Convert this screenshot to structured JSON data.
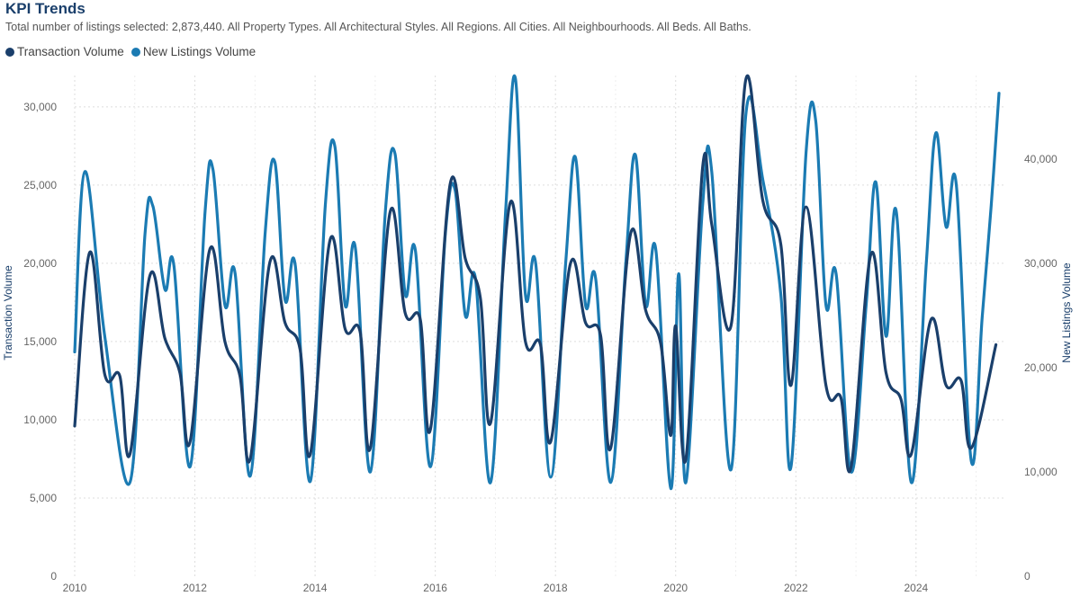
{
  "chart_data": {
    "type": "line",
    "title": "KPI Trends",
    "subtitle": "Total number of listings selected: 2,873,440. All Property Types. All Architectural Styles. All Regions. All Cities. All Neighbourhoods. All Beds. All Baths.",
    "xlabel": "",
    "ylabel": "Transaction Volume",
    "y2label": "New Listings Volume",
    "ylim": [
      0,
      32000
    ],
    "y2lim": [
      0,
      48000
    ],
    "xlim": [
      2010,
      2025.5
    ],
    "x_ticks": [
      "2010",
      "2012",
      "2014",
      "2016",
      "2018",
      "2020",
      "2022",
      "2024"
    ],
    "y_ticks": [
      "0",
      "5,000",
      "10,000",
      "15,000",
      "20,000",
      "25,000",
      "30,000"
    ],
    "y2_ticks": [
      "0",
      "10,000",
      "20,000",
      "30,000",
      "40,000"
    ],
    "grid": true,
    "legend_position": "top-left",
    "series": [
      {
        "name": "Transaction Volume",
        "axis": "left",
        "color": "#1a3f6b",
        "points": [
          [
            2010.0,
            9600
          ],
          [
            2010.25,
            20700
          ],
          [
            2010.5,
            12900
          ],
          [
            2010.75,
            12800
          ],
          [
            2010.92,
            7800
          ],
          [
            2011.25,
            19200
          ],
          [
            2011.5,
            15200
          ],
          [
            2011.75,
            13000
          ],
          [
            2011.92,
            8600
          ],
          [
            2012.25,
            20900
          ],
          [
            2012.5,
            15000
          ],
          [
            2012.75,
            12800
          ],
          [
            2012.92,
            7500
          ],
          [
            2013.25,
            20100
          ],
          [
            2013.5,
            16200
          ],
          [
            2013.75,
            14500
          ],
          [
            2013.92,
            7800
          ],
          [
            2014.25,
            21500
          ],
          [
            2014.5,
            15800
          ],
          [
            2014.75,
            15600
          ],
          [
            2014.92,
            8200
          ],
          [
            2015.25,
            23300
          ],
          [
            2015.5,
            16800
          ],
          [
            2015.75,
            16400
          ],
          [
            2015.92,
            9400
          ],
          [
            2016.25,
            25100
          ],
          [
            2016.5,
            20300
          ],
          [
            2016.75,
            17800
          ],
          [
            2016.92,
            9800
          ],
          [
            2017.25,
            23900
          ],
          [
            2017.5,
            15000
          ],
          [
            2017.75,
            14800
          ],
          [
            2017.92,
            8600
          ],
          [
            2018.25,
            20000
          ],
          [
            2018.5,
            16200
          ],
          [
            2018.75,
            15400
          ],
          [
            2018.92,
            8200
          ],
          [
            2019.25,
            21900
          ],
          [
            2019.5,
            17000
          ],
          [
            2019.75,
            14900
          ],
          [
            2019.92,
            9000
          ],
          [
            2020.0,
            16000
          ],
          [
            2020.17,
            7500
          ],
          [
            2020.45,
            26200
          ],
          [
            2020.6,
            22500
          ],
          [
            2020.92,
            16000
          ],
          [
            2021.17,
            31800
          ],
          [
            2021.45,
            24000
          ],
          [
            2021.75,
            21200
          ],
          [
            2021.92,
            12200
          ],
          [
            2022.17,
            23600
          ],
          [
            2022.5,
            12200
          ],
          [
            2022.75,
            11400
          ],
          [
            2022.92,
            7000
          ],
          [
            2023.25,
            20600
          ],
          [
            2023.5,
            13000
          ],
          [
            2023.75,
            11300
          ],
          [
            2023.92,
            7800
          ],
          [
            2024.25,
            16400
          ],
          [
            2024.5,
            12200
          ],
          [
            2024.75,
            12500
          ],
          [
            2024.92,
            8200
          ],
          [
            2025.33,
            14800
          ]
        ]
      },
      {
        "name": "New Listings Volume",
        "axis": "right",
        "color": "#1b7bb3",
        "points": [
          [
            2010.0,
            21500
          ],
          [
            2010.17,
            38800
          ],
          [
            2010.5,
            23000
          ],
          [
            2010.92,
            9000
          ],
          [
            2011.17,
            32800
          ],
          [
            2011.3,
            35500
          ],
          [
            2011.5,
            27500
          ],
          [
            2011.65,
            29800
          ],
          [
            2011.92,
            10500
          ],
          [
            2012.17,
            35000
          ],
          [
            2012.3,
            39000
          ],
          [
            2012.5,
            26000
          ],
          [
            2012.67,
            29000
          ],
          [
            2012.92,
            9600
          ],
          [
            2013.17,
            33000
          ],
          [
            2013.33,
            39700
          ],
          [
            2013.5,
            26500
          ],
          [
            2013.67,
            29800
          ],
          [
            2013.92,
            9100
          ],
          [
            2014.17,
            35500
          ],
          [
            2014.33,
            41200
          ],
          [
            2014.5,
            26000
          ],
          [
            2014.67,
            31500
          ],
          [
            2014.92,
            10000
          ],
          [
            2015.17,
            35000
          ],
          [
            2015.33,
            40500
          ],
          [
            2015.5,
            27000
          ],
          [
            2015.67,
            31200
          ],
          [
            2015.92,
            10500
          ],
          [
            2016.17,
            33000
          ],
          [
            2016.33,
            37000
          ],
          [
            2016.5,
            25000
          ],
          [
            2016.67,
            28500
          ],
          [
            2016.92,
            9000
          ],
          [
            2017.17,
            35000
          ],
          [
            2017.33,
            47800
          ],
          [
            2017.5,
            27000
          ],
          [
            2017.67,
            30000
          ],
          [
            2017.92,
            9500
          ],
          [
            2018.17,
            30000
          ],
          [
            2018.33,
            40200
          ],
          [
            2018.5,
            26000
          ],
          [
            2018.67,
            28500
          ],
          [
            2018.92,
            9000
          ],
          [
            2019.17,
            30000
          ],
          [
            2019.33,
            40400
          ],
          [
            2019.5,
            26000
          ],
          [
            2019.67,
            31300
          ],
          [
            2019.92,
            8400
          ],
          [
            2020.05,
            29000
          ],
          [
            2020.17,
            9000
          ],
          [
            2020.45,
            35700
          ],
          [
            2020.6,
            38800
          ],
          [
            2020.92,
            10200
          ],
          [
            2021.17,
            44400
          ],
          [
            2021.45,
            38000
          ],
          [
            2021.75,
            27000
          ],
          [
            2021.92,
            10500
          ],
          [
            2022.17,
            40600
          ],
          [
            2022.33,
            43700
          ],
          [
            2022.5,
            26000
          ],
          [
            2022.67,
            29000
          ],
          [
            2022.92,
            10000
          ],
          [
            2023.17,
            26000
          ],
          [
            2023.33,
            37800
          ],
          [
            2023.5,
            23000
          ],
          [
            2023.67,
            35000
          ],
          [
            2023.92,
            9000
          ],
          [
            2024.17,
            30000
          ],
          [
            2024.33,
            42500
          ],
          [
            2024.5,
            33500
          ],
          [
            2024.67,
            37500
          ],
          [
            2024.92,
            11000
          ],
          [
            2025.1,
            24800
          ],
          [
            2025.25,
            35500
          ],
          [
            2025.38,
            46300
          ]
        ]
      }
    ]
  }
}
